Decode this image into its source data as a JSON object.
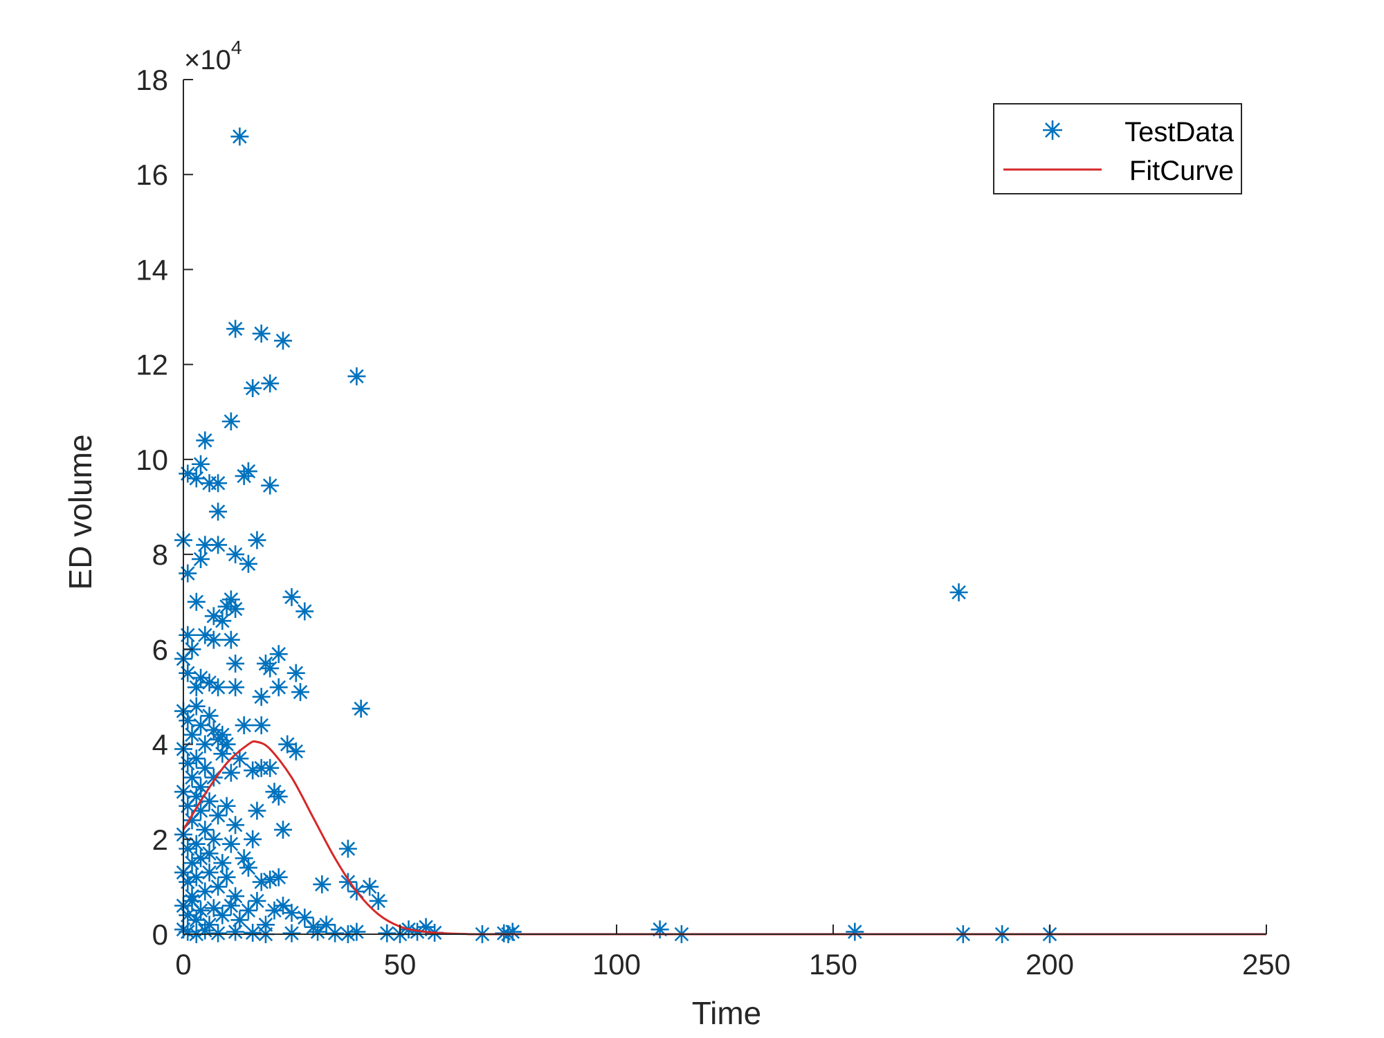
{
  "colors": {
    "scatter": "#0072BD",
    "fit": "#D62728",
    "axis": "#262626",
    "background": "#ffffff"
  },
  "chart_data": {
    "type": "scatter",
    "title": "",
    "xlabel": "Time",
    "ylabel": "ED volume",
    "y_exponent_label": "×10",
    "y_exponent_power": "4",
    "xlim": [
      0,
      250
    ],
    "ylim": [
      0,
      18
    ],
    "x_ticks": [
      0,
      50,
      100,
      150,
      200,
      250
    ],
    "x_tick_labels": [
      "0",
      "50",
      "100",
      "150",
      "200",
      "250"
    ],
    "y_ticks": [
      0,
      2,
      4,
      6,
      8,
      10,
      12,
      14,
      16,
      18
    ],
    "y_tick_labels": [
      "0",
      "2",
      "4",
      "6",
      "8",
      "10",
      "12",
      "14",
      "16",
      "18"
    ],
    "legend_position": "top-right",
    "series": [
      {
        "name": "TestData",
        "marker": "asterisk",
        "points": [
          [
            13,
            16.8
          ],
          [
            12,
            12.75
          ],
          [
            18,
            12.65
          ],
          [
            23,
            12.5
          ],
          [
            16,
            11.5
          ],
          [
            20,
            11.6
          ],
          [
            40,
            11.75
          ],
          [
            11,
            10.8
          ],
          [
            5,
            10.4
          ],
          [
            1,
            9.7
          ],
          [
            3,
            9.6
          ],
          [
            4,
            9.9
          ],
          [
            6,
            9.5
          ],
          [
            8,
            9.5
          ],
          [
            14,
            9.65
          ],
          [
            15,
            9.75
          ],
          [
            20,
            9.45
          ],
          [
            8,
            8.9
          ],
          [
            0,
            8.3
          ],
          [
            4,
            7.9
          ],
          [
            5,
            8.2
          ],
          [
            8,
            8.2
          ],
          [
            12,
            8.0
          ],
          [
            15,
            7.8
          ],
          [
            17,
            8.3
          ],
          [
            1,
            7.6
          ],
          [
            3,
            7.0
          ],
          [
            7,
            6.7
          ],
          [
            9,
            6.6
          ],
          [
            10,
            6.9
          ],
          [
            11,
            7.05
          ],
          [
            12,
            6.85
          ],
          [
            25,
            7.1
          ],
          [
            28,
            6.8
          ],
          [
            179,
            7.2
          ],
          [
            1,
            6.3
          ],
          [
            2,
            6.0
          ],
          [
            5,
            6.3
          ],
          [
            7,
            6.2
          ],
          [
            11,
            6.2
          ],
          [
            12,
            5.7
          ],
          [
            0,
            5.8
          ],
          [
            1,
            5.5
          ],
          [
            3,
            5.2
          ],
          [
            4,
            5.4
          ],
          [
            6,
            5.3
          ],
          [
            8,
            5.2
          ],
          [
            12,
            5.2
          ],
          [
            19,
            5.7
          ],
          [
            20,
            5.6
          ],
          [
            22,
            5.9
          ],
          [
            26,
            5.5
          ],
          [
            27,
            5.1
          ],
          [
            18,
            5.0
          ],
          [
            22,
            5.2
          ],
          [
            41,
            4.75
          ],
          [
            0,
            4.7
          ],
          [
            1,
            4.5
          ],
          [
            2,
            4.2
          ],
          [
            3,
            4.8
          ],
          [
            4,
            4.4
          ],
          [
            5,
            4.0
          ],
          [
            6,
            4.6
          ],
          [
            7,
            4.3
          ],
          [
            8,
            4.1
          ],
          [
            9,
            4.2
          ],
          [
            10,
            4.0
          ],
          [
            14,
            4.4
          ],
          [
            18,
            4.4
          ],
          [
            24,
            4.0
          ],
          [
            0,
            3.9
          ],
          [
            1,
            3.6
          ],
          [
            2,
            3.3
          ],
          [
            3,
            3.7
          ],
          [
            4,
            3.1
          ],
          [
            5,
            3.5
          ],
          [
            7,
            3.3
          ],
          [
            9,
            3.8
          ],
          [
            11,
            3.4
          ],
          [
            13,
            3.7
          ],
          [
            16,
            3.45
          ],
          [
            18,
            3.5
          ],
          [
            20,
            3.5
          ],
          [
            26,
            3.85
          ],
          [
            0,
            3.0
          ],
          [
            1,
            2.7
          ],
          [
            2,
            2.4
          ],
          [
            3,
            2.9
          ],
          [
            4,
            2.6
          ],
          [
            5,
            2.2
          ],
          [
            6,
            2.8
          ],
          [
            8,
            2.5
          ],
          [
            10,
            2.7
          ],
          [
            12,
            2.3
          ],
          [
            17,
            2.6
          ],
          [
            21,
            3.0
          ],
          [
            22,
            2.9
          ],
          [
            0,
            2.1
          ],
          [
            1,
            1.8
          ],
          [
            2,
            1.5
          ],
          [
            3,
            1.9
          ],
          [
            4,
            1.6
          ],
          [
            6,
            1.7
          ],
          [
            7,
            2.0
          ],
          [
            9,
            1.5
          ],
          [
            11,
            1.9
          ],
          [
            14,
            1.6
          ],
          [
            16,
            2.0
          ],
          [
            23,
            2.2
          ],
          [
            38,
            1.8
          ],
          [
            0,
            1.3
          ],
          [
            1,
            1.1
          ],
          [
            2,
            0.8
          ],
          [
            3,
            1.2
          ],
          [
            5,
            0.9
          ],
          [
            6,
            1.3
          ],
          [
            8,
            1.0
          ],
          [
            10,
            1.2
          ],
          [
            12,
            0.8
          ],
          [
            15,
            1.4
          ],
          [
            18,
            1.1
          ],
          [
            20,
            1.15
          ],
          [
            22,
            1.2
          ],
          [
            32,
            1.05
          ],
          [
            38,
            1.1
          ],
          [
            40,
            0.9
          ],
          [
            43,
            1.0
          ],
          [
            45,
            0.7
          ],
          [
            0,
            0.6
          ],
          [
            1,
            0.4
          ],
          [
            2,
            0.7
          ],
          [
            3,
            0.3
          ],
          [
            4,
            0.5
          ],
          [
            6,
            0.2
          ],
          [
            7,
            0.55
          ],
          [
            9,
            0.4
          ],
          [
            11,
            0.6
          ],
          [
            13,
            0.3
          ],
          [
            15,
            0.5
          ],
          [
            17,
            0.7
          ],
          [
            19,
            0.2
          ],
          [
            21,
            0.5
          ],
          [
            23,
            0.6
          ],
          [
            25,
            0.45
          ],
          [
            28,
            0.35
          ],
          [
            30,
            0.15
          ],
          [
            33,
            0.2
          ],
          [
            0,
            0.1
          ],
          [
            1,
            0.05
          ],
          [
            3,
            0.0
          ],
          [
            5,
            0.08
          ],
          [
            8,
            0.02
          ],
          [
            12,
            0.05
          ],
          [
            16,
            0.03
          ],
          [
            19,
            0.0
          ],
          [
            25,
            0.02
          ],
          [
            31,
            0.05
          ],
          [
            35,
            0.02
          ],
          [
            38,
            0.0
          ],
          [
            40,
            0.05
          ],
          [
            47,
            0.02
          ],
          [
            50,
            0.0
          ],
          [
            52,
            0.1
          ],
          [
            54,
            0.05
          ],
          [
            56,
            0.15
          ],
          [
            58,
            0.03
          ],
          [
            69,
            0.0
          ],
          [
            74,
            0.02
          ],
          [
            75,
            0.0
          ],
          [
            76,
            0.05
          ],
          [
            110,
            0.1
          ],
          [
            115,
            0.0
          ],
          [
            155,
            0.05
          ],
          [
            180,
            0.0
          ],
          [
            189,
            0.0
          ],
          [
            200,
            0.0
          ]
        ]
      },
      {
        "name": "FitCurve",
        "type": "line",
        "points": [
          [
            0,
            2.2
          ],
          [
            5,
            2.95
          ],
          [
            10,
            3.6
          ],
          [
            15,
            4.0
          ],
          [
            17,
            4.05
          ],
          [
            20,
            3.9
          ],
          [
            25,
            3.3
          ],
          [
            30,
            2.45
          ],
          [
            35,
            1.6
          ],
          [
            40,
            0.9
          ],
          [
            45,
            0.42
          ],
          [
            50,
            0.16
          ],
          [
            55,
            0.06
          ],
          [
            60,
            0.02
          ],
          [
            65,
            0.005
          ],
          [
            70,
            0.0
          ],
          [
            100,
            0.0
          ],
          [
            150,
            0.0
          ],
          [
            200,
            0.0
          ],
          [
            250,
            0.0
          ]
        ]
      }
    ]
  }
}
